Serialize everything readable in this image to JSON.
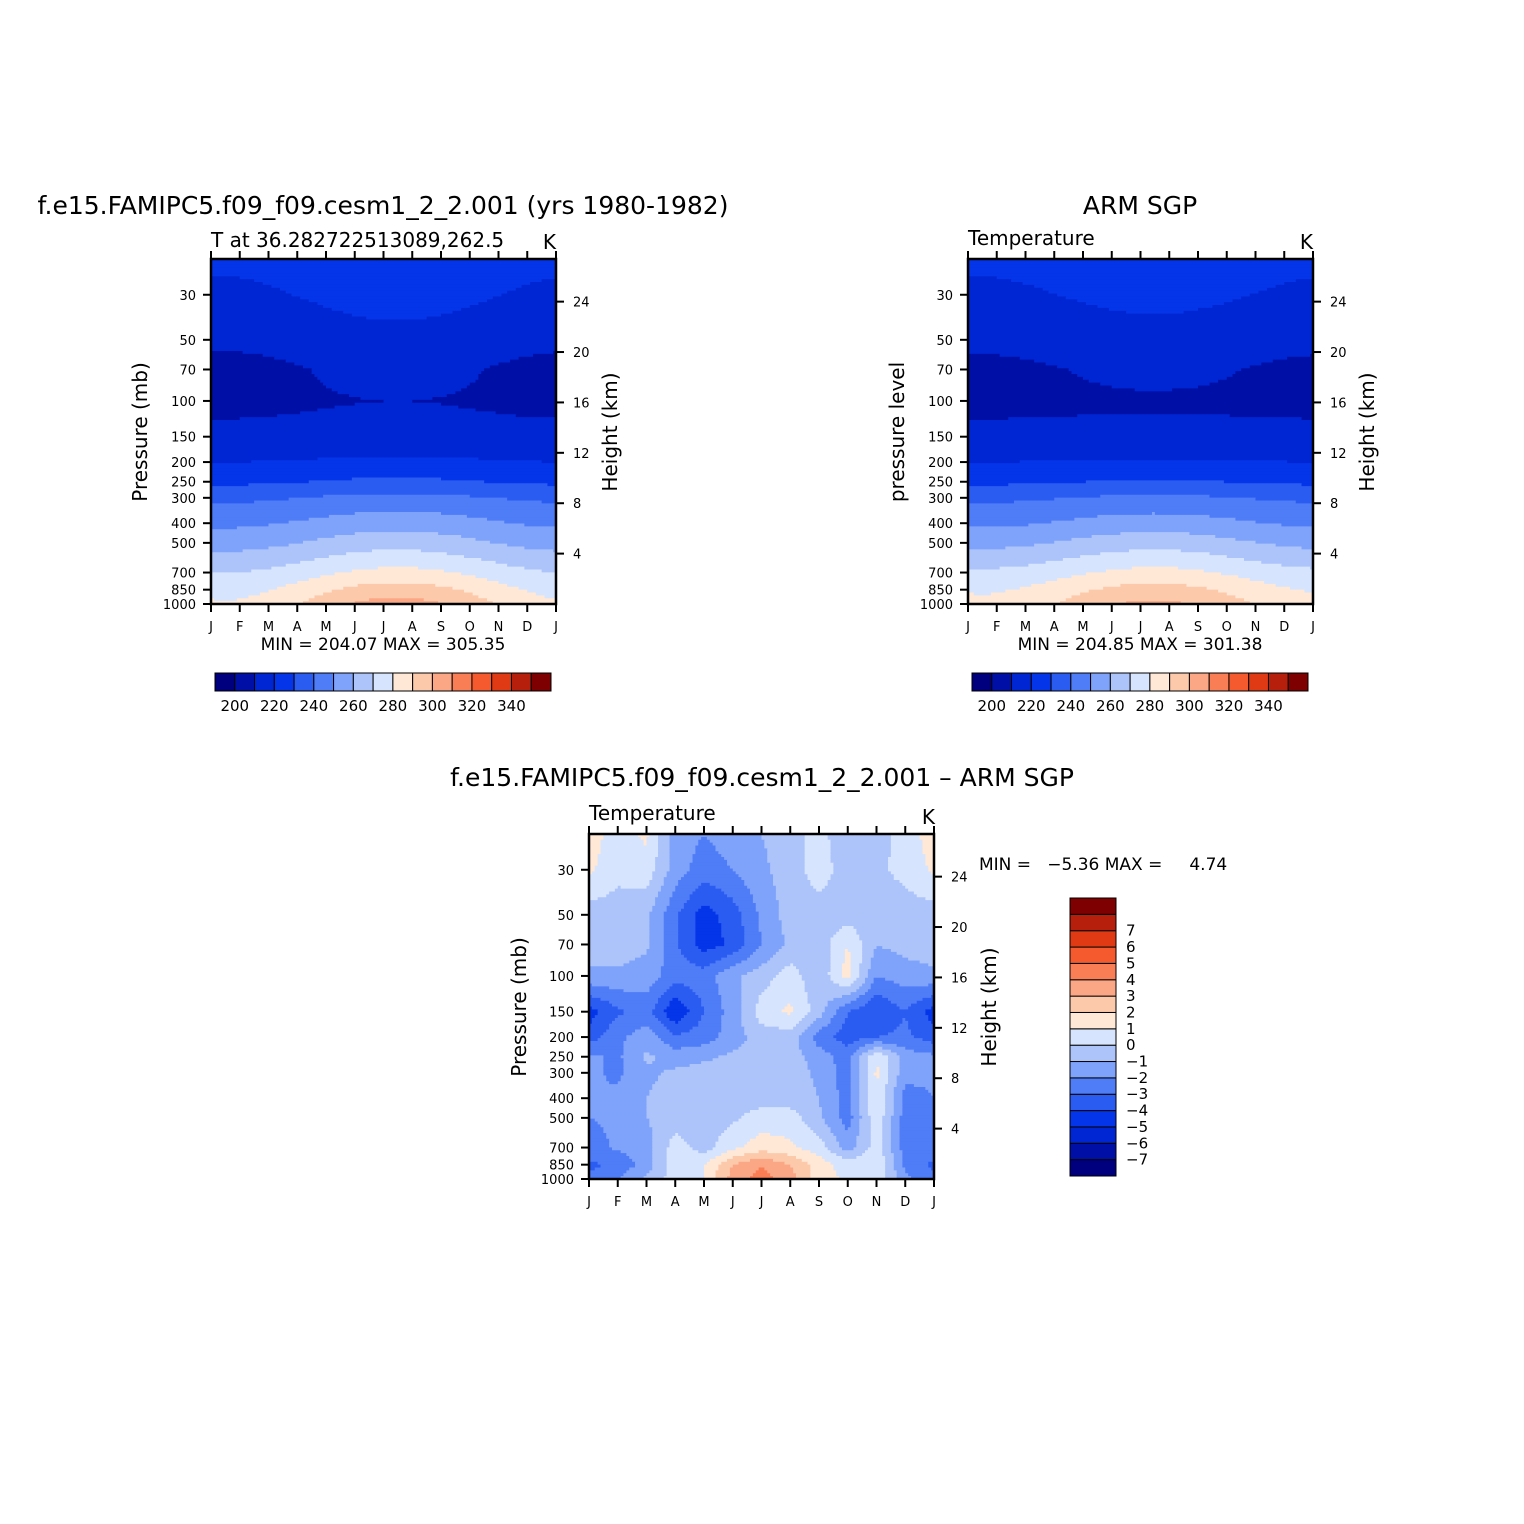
{
  "chart_data": [
    {
      "type": "heatmap",
      "title": "f.e15.FAMIPC5.f09_f09.cesm1_2_2.001 (yrs 1980-1982)",
      "subtitle": "T at 36.282722513089,262.5",
      "units": "K",
      "ylabel": "Pressure (mb)",
      "y2label": "Height (km)",
      "x_ticks": [
        "J",
        "F",
        "M",
        "A",
        "M",
        "J",
        "J",
        "A",
        "S",
        "O",
        "N",
        "D",
        "J"
      ],
      "y_ticks": [
        30,
        50,
        70,
        100,
        150,
        200,
        250,
        300,
        400,
        500,
        700,
        850,
        1000
      ],
      "ylim": [
        1000,
        20
      ],
      "y_scale": "log",
      "y2_ticks": [
        4,
        8,
        12,
        16,
        20,
        24
      ],
      "stats_label": "MIN = 204.07 MAX = 305.35",
      "min": 204.07,
      "max": 305.35,
      "colorbar": {
        "orientation": "horizontal",
        "levels": [
          200,
          210,
          220,
          230,
          240,
          250,
          260,
          270,
          280,
          290,
          300,
          310,
          320,
          330,
          340
        ],
        "tick_labels": [
          "200",
          "220",
          "240",
          "260",
          "280",
          "300",
          "320",
          "340"
        ],
        "colors": [
          "#00007f",
          "#0010a6",
          "#0026d4",
          "#0535e8",
          "#2b5cf2",
          "#4f7cf7",
          "#7fa3fa",
          "#adc4fb",
          "#d6e4fd",
          "#ffe8d6",
          "#fcc9ab",
          "#fba785",
          "#f97d55",
          "#f45a2e",
          "#e03a14",
          "#b61f0c",
          "#7f0000"
        ]
      },
      "profiles": {
        "p": [
          20,
          30,
          50,
          70,
          100,
          150,
          200,
          250,
          300,
          400,
          500,
          700,
          850,
          1000
        ],
        "t_winter": [
          222,
          218,
          212,
          207,
          208,
          212,
          220,
          228,
          238,
          248,
          256,
          270,
          277,
          281
        ],
        "t_summer": [
          228,
          224,
          217,
          213,
          210,
          213,
          222,
          232,
          243,
          256,
          266,
          283,
          295,
          304
        ]
      }
    },
    {
      "type": "heatmap",
      "title": "ARM SGP",
      "subtitle": "Temperature",
      "units": "K",
      "ylabel": "pressure level",
      "y2label": "Height (km)",
      "x_ticks": [
        "J",
        "F",
        "M",
        "A",
        "M",
        "J",
        "J",
        "A",
        "S",
        "O",
        "N",
        "D",
        "J"
      ],
      "y_ticks": [
        30,
        50,
        70,
        100,
        150,
        200,
        250,
        300,
        400,
        500,
        700,
        850,
        1000
      ],
      "ylim": [
        1000,
        20
      ],
      "y_scale": "log",
      "y2_ticks": [
        4,
        8,
        12,
        16,
        20,
        24
      ],
      "stats_label": "MIN = 204.85 MAX = 301.38",
      "min": 204.85,
      "max": 301.38,
      "colorbar": {
        "orientation": "horizontal",
        "levels": [
          200,
          210,
          220,
          230,
          240,
          250,
          260,
          270,
          280,
          290,
          300,
          310,
          320,
          330,
          340
        ],
        "tick_labels": [
          "200",
          "220",
          "240",
          "260",
          "280",
          "300",
          "320",
          "340"
        ],
        "colors": [
          "#00007f",
          "#0010a6",
          "#0026d4",
          "#0535e8",
          "#2b5cf2",
          "#4f7cf7",
          "#7fa3fa",
          "#adc4fb",
          "#d6e4fd",
          "#ffe8d6",
          "#fcc9ab",
          "#fba785",
          "#f97d55",
          "#f45a2e",
          "#e03a14",
          "#b61f0c",
          "#7f0000"
        ]
      },
      "profiles": {
        "p": [
          20,
          30,
          50,
          70,
          100,
          150,
          200,
          250,
          300,
          400,
          500,
          700,
          850,
          1000
        ],
        "t_winter": [
          222,
          218,
          212,
          208,
          208,
          212,
          220,
          228,
          238,
          248,
          257,
          272,
          279,
          282
        ],
        "t_summer": [
          228,
          223,
          216,
          212,
          209,
          212,
          221,
          231,
          242,
          255,
          266,
          283,
          294,
          302
        ]
      }
    },
    {
      "type": "heatmap",
      "title": "f.e15.FAMIPC5.f09_f09.cesm1_2_2.001 – ARM SGP",
      "subtitle": "Temperature",
      "units": "K",
      "ylabel": "Pressure (mb)",
      "y2label": "Height (km)",
      "x_ticks": [
        "J",
        "F",
        "M",
        "A",
        "M",
        "J",
        "J",
        "A",
        "S",
        "O",
        "N",
        "D",
        "J"
      ],
      "y_ticks": [
        30,
        50,
        70,
        100,
        150,
        200,
        250,
        300,
        400,
        500,
        700,
        850,
        1000
      ],
      "ylim": [
        1000,
        20
      ],
      "y_scale": "log",
      "y2_ticks": [
        4,
        8,
        12,
        16,
        20,
        24
      ],
      "stats_label": "MIN =   −5.36 MAX =     4.74",
      "min": -5.36,
      "max": 4.74,
      "colorbar": {
        "orientation": "vertical",
        "levels": [
          -7,
          -6,
          -5,
          -4,
          -3,
          -2,
          -1,
          0,
          1,
          2,
          3,
          4,
          5,
          6,
          7
        ],
        "tick_labels": [
          "−7",
          "−6",
          "−5",
          "−4",
          "−3",
          "−2",
          "−1",
          "0",
          "1",
          "2",
          "3",
          "4",
          "5",
          "6",
          "7"
        ],
        "colors": [
          "#00007f",
          "#0010a6",
          "#0026d4",
          "#0535e8",
          "#2b5cf2",
          "#4f7cf7",
          "#7fa3fa",
          "#adc4fb",
          "#d6e4fd",
          "#ffe8d6",
          "#fcc9ab",
          "#fba785",
          "#f97d55",
          "#f45a2e",
          "#e03a14",
          "#b61f0c",
          "#7f0000"
        ]
      },
      "grid": {
        "p": [
          20,
          30,
          50,
          70,
          100,
          150,
          200,
          250,
          300,
          400,
          500,
          700,
          850,
          1000
        ],
        "months": [
          "J",
          "F",
          "M",
          "A",
          "M",
          "J",
          "J",
          "A",
          "S",
          "O",
          "N",
          "D",
          "J"
        ],
        "values": [
          [
            1.5,
            0.5,
            1.2,
            -1.5,
            -2.0,
            -1.5,
            -1.0,
            -0.5,
            0.5,
            -1.0,
            -0.5,
            0.5,
            1.5
          ],
          [
            1.2,
            0.3,
            0.6,
            -1.5,
            -2.5,
            -2.0,
            -1.2,
            -0.5,
            0.5,
            -0.5,
            -0.2,
            0.3,
            1.2
          ],
          [
            -0.5,
            -0.5,
            -0.8,
            -2.8,
            -4.5,
            -3.5,
            -1.8,
            -0.5,
            -0.5,
            -0.5,
            -0.5,
            -0.5,
            -0.5
          ],
          [
            -0.5,
            -0.5,
            -0.8,
            -2.8,
            -4.5,
            -3.8,
            -2.0,
            -0.8,
            -0.6,
            1.0,
            -1.0,
            -0.6,
            -0.5
          ],
          [
            -1.2,
            -1.2,
            -1.5,
            -2.5,
            -2.5,
            -1.2,
            -0.5,
            0.5,
            -0.8,
            1.5,
            -2.0,
            -1.5,
            -1.2
          ],
          [
            -4.5,
            -3.2,
            -2.5,
            -5.0,
            -3.0,
            -1.5,
            0.5,
            1.2,
            -0.5,
            -3.0,
            -4.0,
            -3.0,
            -4.5
          ],
          [
            -3.5,
            -2.2,
            -1.5,
            -2.8,
            -2.5,
            -1.5,
            -0.5,
            -0.5,
            -2.5,
            -3.5,
            -3.0,
            -2.8,
            -3.5
          ],
          [
            -1.8,
            -2.2,
            -0.8,
            -1.5,
            -1.2,
            -0.8,
            -0.5,
            -0.5,
            -1.5,
            -2.5,
            1.0,
            -1.5,
            -1.8
          ],
          [
            -1.8,
            -2.2,
            -1.2,
            -0.8,
            -0.6,
            -0.5,
            -0.5,
            -0.5,
            -1.2,
            -2.5,
            1.2,
            -1.6,
            -1.8
          ],
          [
            -2.0,
            -1.8,
            -1.0,
            -0.6,
            -0.5,
            -0.5,
            -0.5,
            -0.5,
            -1.0,
            -2.5,
            1.0,
            -2.5,
            -2.0
          ],
          [
            -2.0,
            -1.8,
            -1.0,
            -0.5,
            -0.5,
            -0.2,
            0.5,
            0.5,
            -0.8,
            -2.5,
            0.8,
            -2.5,
            -2.0
          ],
          [
            -2.5,
            -1.8,
            -1.5,
            0.5,
            -0.5,
            0.8,
            1.5,
            1.2,
            0.5,
            -1.5,
            0.5,
            -2.5,
            -2.5
          ],
          [
            -3.2,
            -2.8,
            -1.5,
            0.6,
            1.0,
            3.0,
            4.0,
            3.0,
            1.5,
            0.5,
            1.0,
            -2.2,
            -3.2
          ],
          [
            -2.8,
            -2.0,
            -0.8,
            0.5,
            1.0,
            3.5,
            4.5,
            3.5,
            1.5,
            0.8,
            0.8,
            -1.8,
            -2.8
          ]
        ]
      }
    }
  ]
}
